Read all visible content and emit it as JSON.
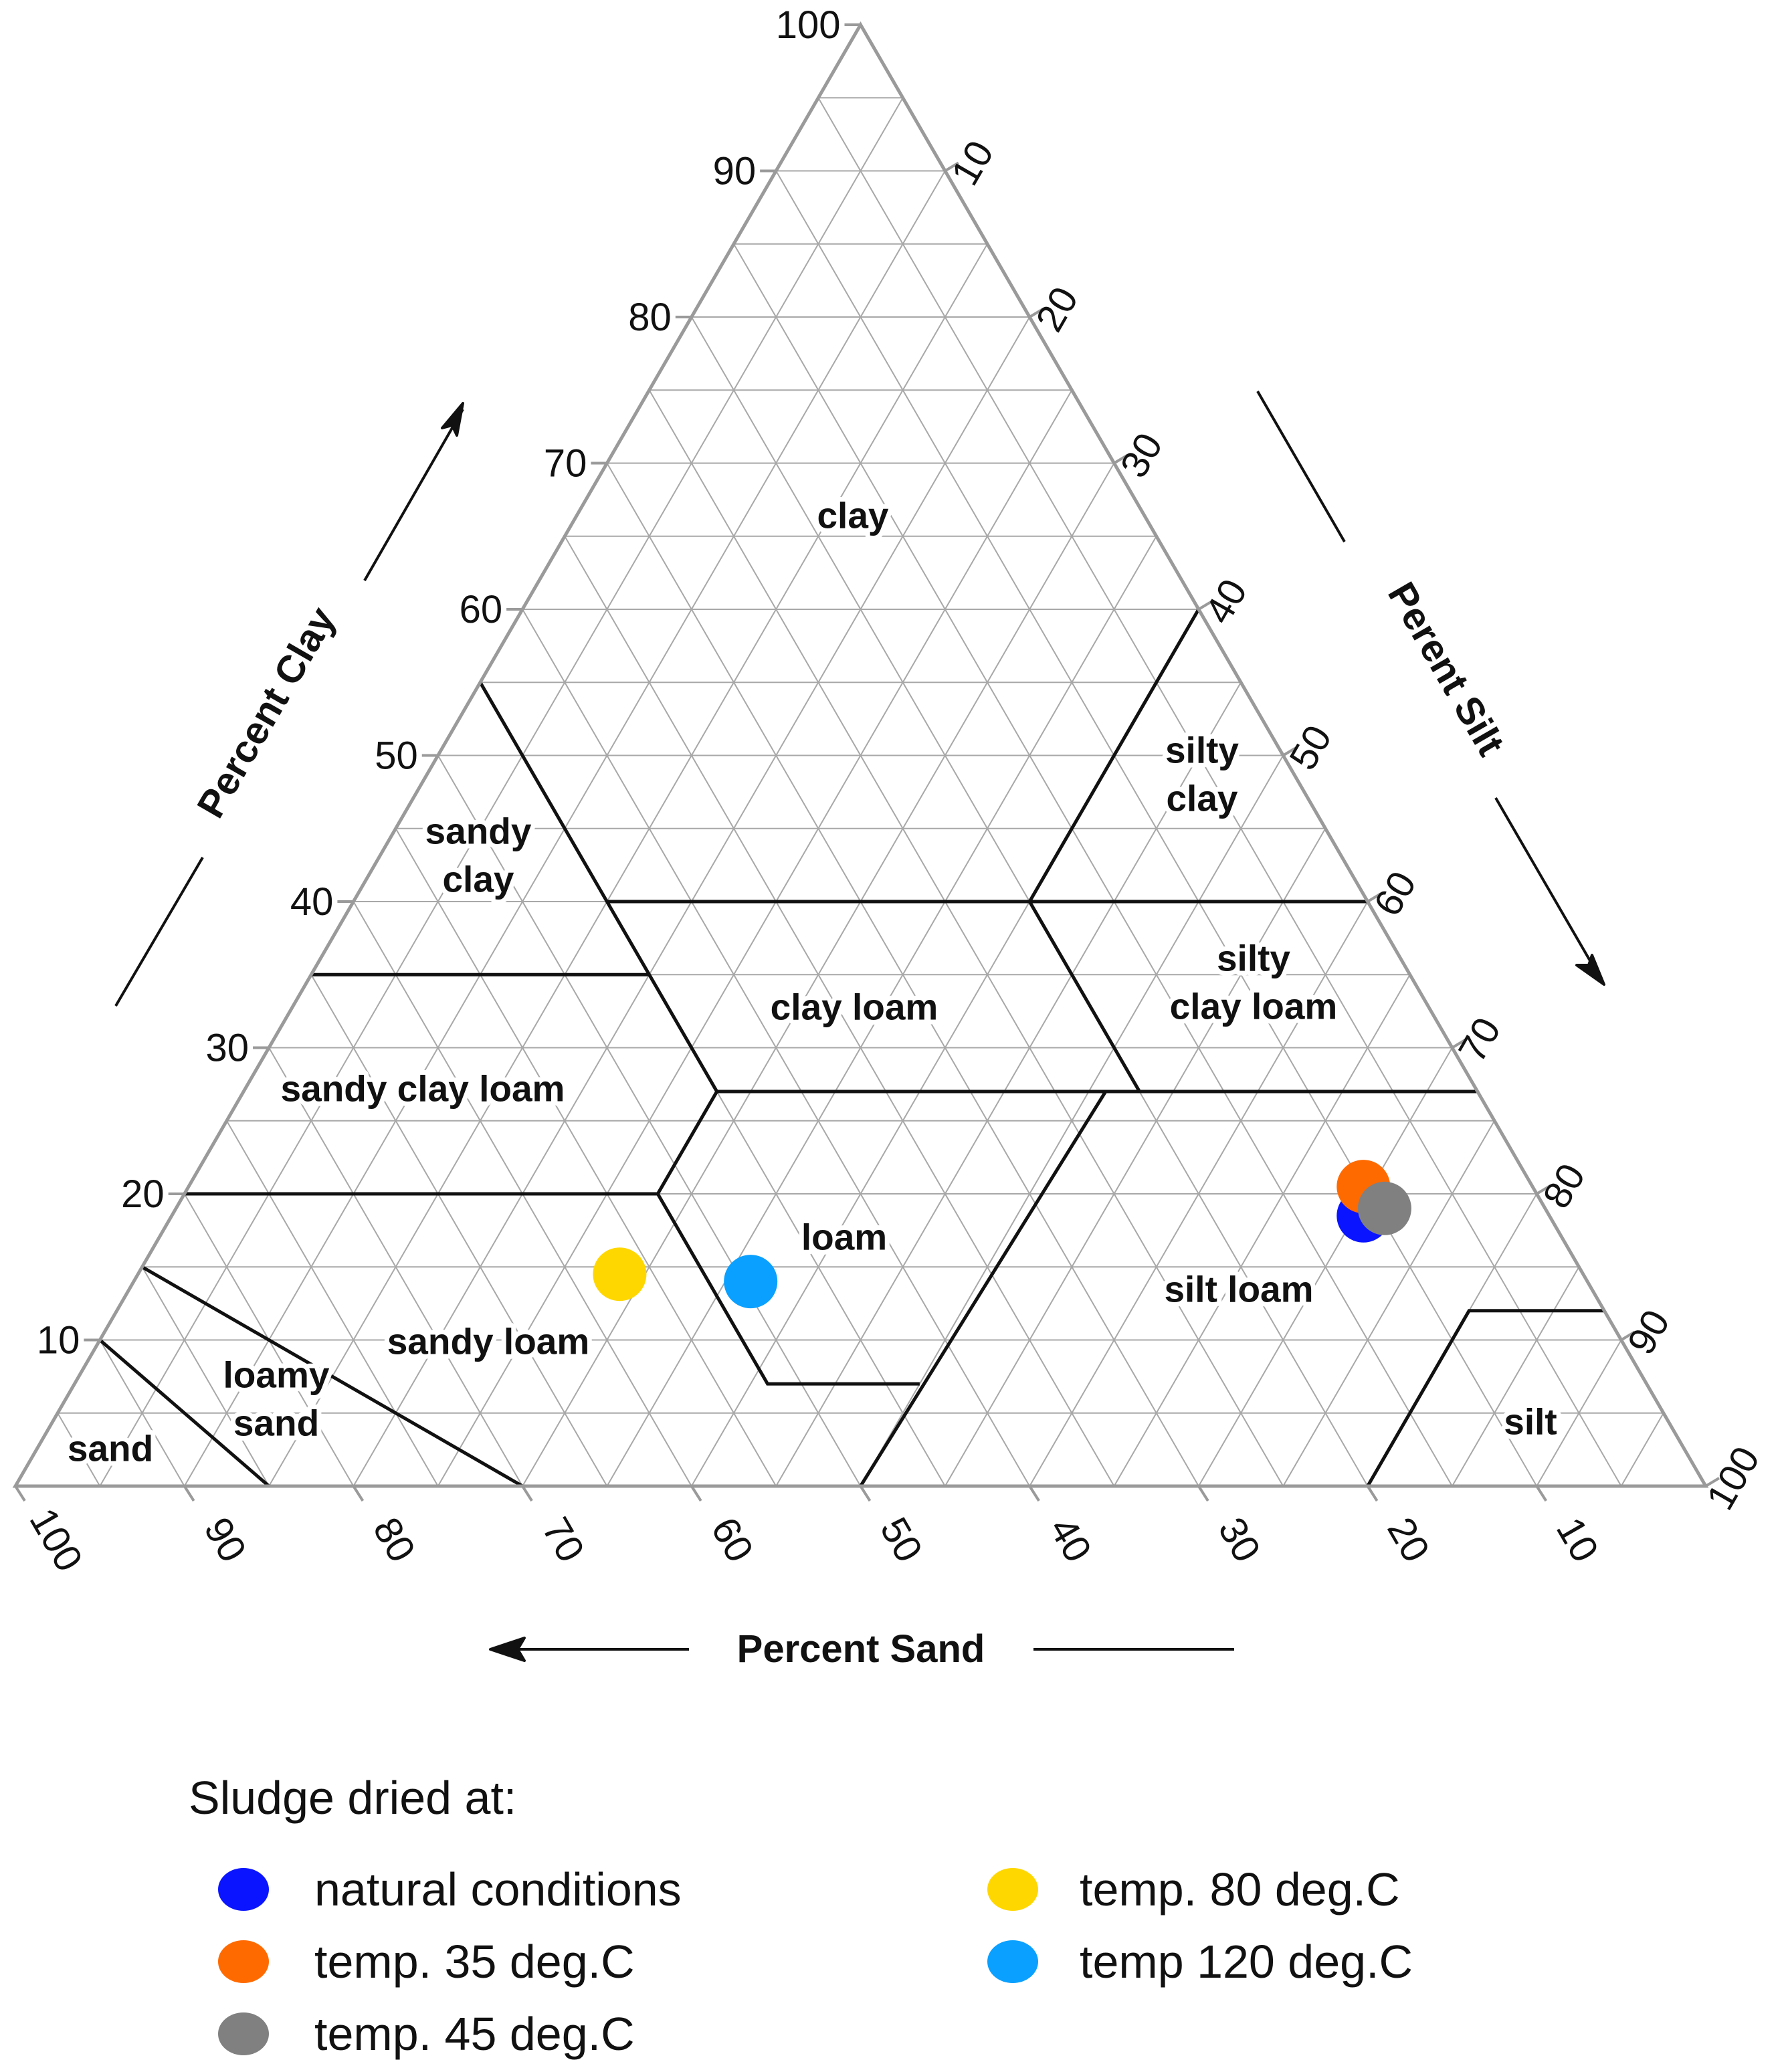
{
  "chart_data": {
    "type": "scatter",
    "subtype": "ternary-soil-texture",
    "axes": {
      "clay": {
        "title": "Percent Clay",
        "ticks": [
          10,
          20,
          30,
          40,
          50,
          60,
          70,
          80,
          90,
          100
        ]
      },
      "silt": {
        "title": "Perent Silt",
        "ticks": [
          10,
          20,
          30,
          40,
          50,
          60,
          70,
          80,
          90,
          100
        ]
      },
      "sand": {
        "title": "Percent Sand",
        "ticks": [
          100,
          90,
          80,
          70,
          60,
          50,
          40,
          30,
          20,
          10
        ]
      }
    },
    "grid_step": 5,
    "regions": [
      {
        "name": "clay",
        "lines": [
          "clay"
        ]
      },
      {
        "name": "silty clay",
        "lines": [
          "silty",
          "clay"
        ]
      },
      {
        "name": "sandy clay",
        "lines": [
          "sandy",
          "clay"
        ]
      },
      {
        "name": "clay loam",
        "lines": [
          "clay loam"
        ]
      },
      {
        "name": "silty clay loam",
        "lines": [
          "silty",
          "clay loam"
        ]
      },
      {
        "name": "sandy clay loam",
        "lines": [
          "sandy clay loam"
        ]
      },
      {
        "name": "loam",
        "lines": [
          "loam"
        ]
      },
      {
        "name": "silt loam",
        "lines": [
          "silt loam"
        ]
      },
      {
        "name": "sandy loam",
        "lines": [
          "sandy loam"
        ]
      },
      {
        "name": "loamy sand",
        "lines": [
          "loamy",
          "sand"
        ]
      },
      {
        "name": "sand",
        "lines": [
          "sand"
        ]
      },
      {
        "name": "silt",
        "lines": [
          "silt"
        ]
      }
    ],
    "series": [
      {
        "name": "natural conditions",
        "color": "#0a14ff",
        "clay": 18.5,
        "silt": 70.5,
        "sand": 11
      },
      {
        "name": "temp. 35 deg.C",
        "color": "#ff6a00",
        "clay": 20.5,
        "silt": 69.5,
        "sand": 10
      },
      {
        "name": "temp. 45 deg.C",
        "color": "#808080",
        "clay": 19.0,
        "silt": 71.5,
        "sand": 9.5
      },
      {
        "name": "temp. 80 deg.C",
        "color": "#ffd700",
        "clay": 14.5,
        "silt": 28.5,
        "sand": 57
      },
      {
        "name": "temp 120 deg.C",
        "color": "#0aa0ff",
        "clay": 14.0,
        "silt": 36.5,
        "sand": 49.5
      }
    ],
    "legend": {
      "title": "Sludge dried at:",
      "placement": "bottom",
      "columns": [
        [
          "natural conditions",
          "temp. 35 deg.C",
          "temp. 45 deg.C"
        ],
        [
          "temp. 80 deg.C",
          "temp 120 deg.C"
        ]
      ]
    }
  }
}
